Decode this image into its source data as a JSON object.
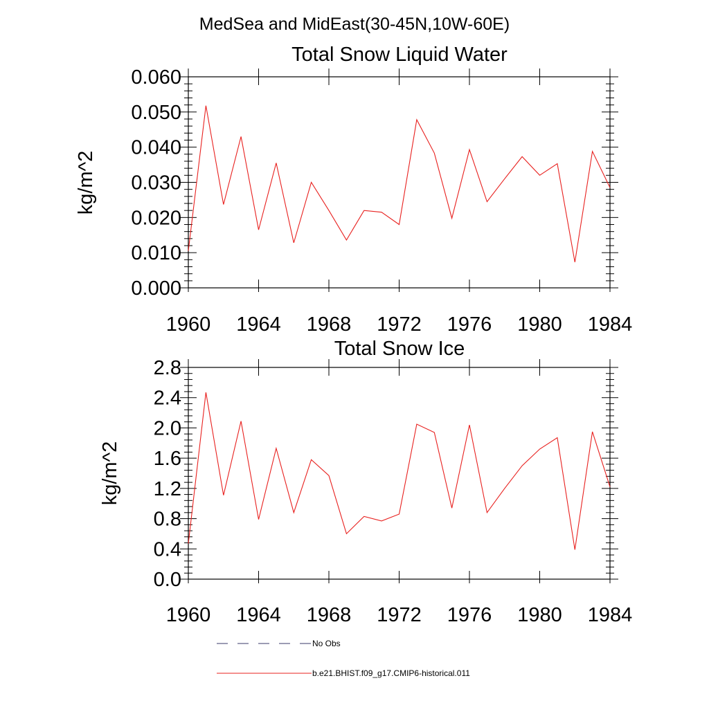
{
  "figure_title": "MedSea and MidEast(30-45N,10W-60E)",
  "colors": {
    "model": "#e8201e",
    "obs": "#3a3a6a"
  },
  "chart_data": [
    {
      "type": "line",
      "title": "Total Snow Liquid Water",
      "xlabel": "",
      "ylabel": "kg/m^2",
      "xlim": [
        1960,
        1984
      ],
      "ylim": [
        0.0,
        0.06
      ],
      "xticks": [
        1960,
        1964,
        1968,
        1972,
        1976,
        1980,
        1984
      ],
      "yticks": [
        "0.000",
        "0.010",
        "0.020",
        "0.030",
        "0.040",
        "0.050",
        "0.060"
      ],
      "x": [
        1960,
        1961,
        1962,
        1963,
        1964,
        1965,
        1966,
        1967,
        1968,
        1969,
        1970,
        1971,
        1972,
        1973,
        1974,
        1975,
        1976,
        1977,
        1978,
        1979,
        1980,
        1981,
        1982,
        1983,
        1984
      ],
      "series": [
        {
          "name": "b.e21.BHIST.f09_g17.CMIP6-historical.011",
          "values": [
            0.0105,
            0.0518,
            0.0237,
            0.043,
            0.0165,
            0.0355,
            0.0128,
            0.03,
            0.022,
            0.0136,
            0.022,
            0.0215,
            0.018,
            0.0478,
            0.0383,
            0.0198,
            0.0393,
            0.0245,
            0.031,
            0.0373,
            0.032,
            0.0353,
            0.0073,
            0.0388,
            0.0285
          ]
        }
      ]
    },
    {
      "type": "line",
      "title": "Total Snow Ice",
      "xlabel": "",
      "ylabel": "kg/m^2",
      "xlim": [
        1960,
        1984
      ],
      "ylim": [
        0.0,
        2.8
      ],
      "xticks": [
        1960,
        1964,
        1968,
        1972,
        1976,
        1980,
        1984
      ],
      "yticks": [
        "0.0",
        "0.4",
        "0.8",
        "1.2",
        "1.6",
        "2.0",
        "2.4",
        "2.8"
      ],
      "x": [
        1960,
        1961,
        1962,
        1963,
        1964,
        1965,
        1966,
        1967,
        1968,
        1969,
        1970,
        1971,
        1972,
        1973,
        1974,
        1975,
        1976,
        1977,
        1978,
        1979,
        1980,
        1981,
        1982,
        1983,
        1984
      ],
      "series": [
        {
          "name": "b.e21.BHIST.f09_g17.CMIP6-historical.011",
          "values": [
            0.47,
            2.47,
            1.11,
            2.09,
            0.79,
            1.73,
            0.88,
            1.58,
            1.37,
            0.6,
            0.83,
            0.77,
            0.86,
            2.05,
            1.94,
            0.94,
            2.04,
            0.88,
            1.2,
            1.5,
            1.72,
            1.87,
            0.39,
            1.95,
            1.22
          ]
        }
      ]
    }
  ],
  "legend": {
    "placement": "bottom",
    "items": [
      {
        "label": "No Obs",
        "style": "dashed",
        "color": "#3a3a6a"
      },
      {
        "label": "b.e21.BHIST.f09_g17.CMIP6-historical.011",
        "style": "solid",
        "color": "#e8201e"
      }
    ]
  }
}
